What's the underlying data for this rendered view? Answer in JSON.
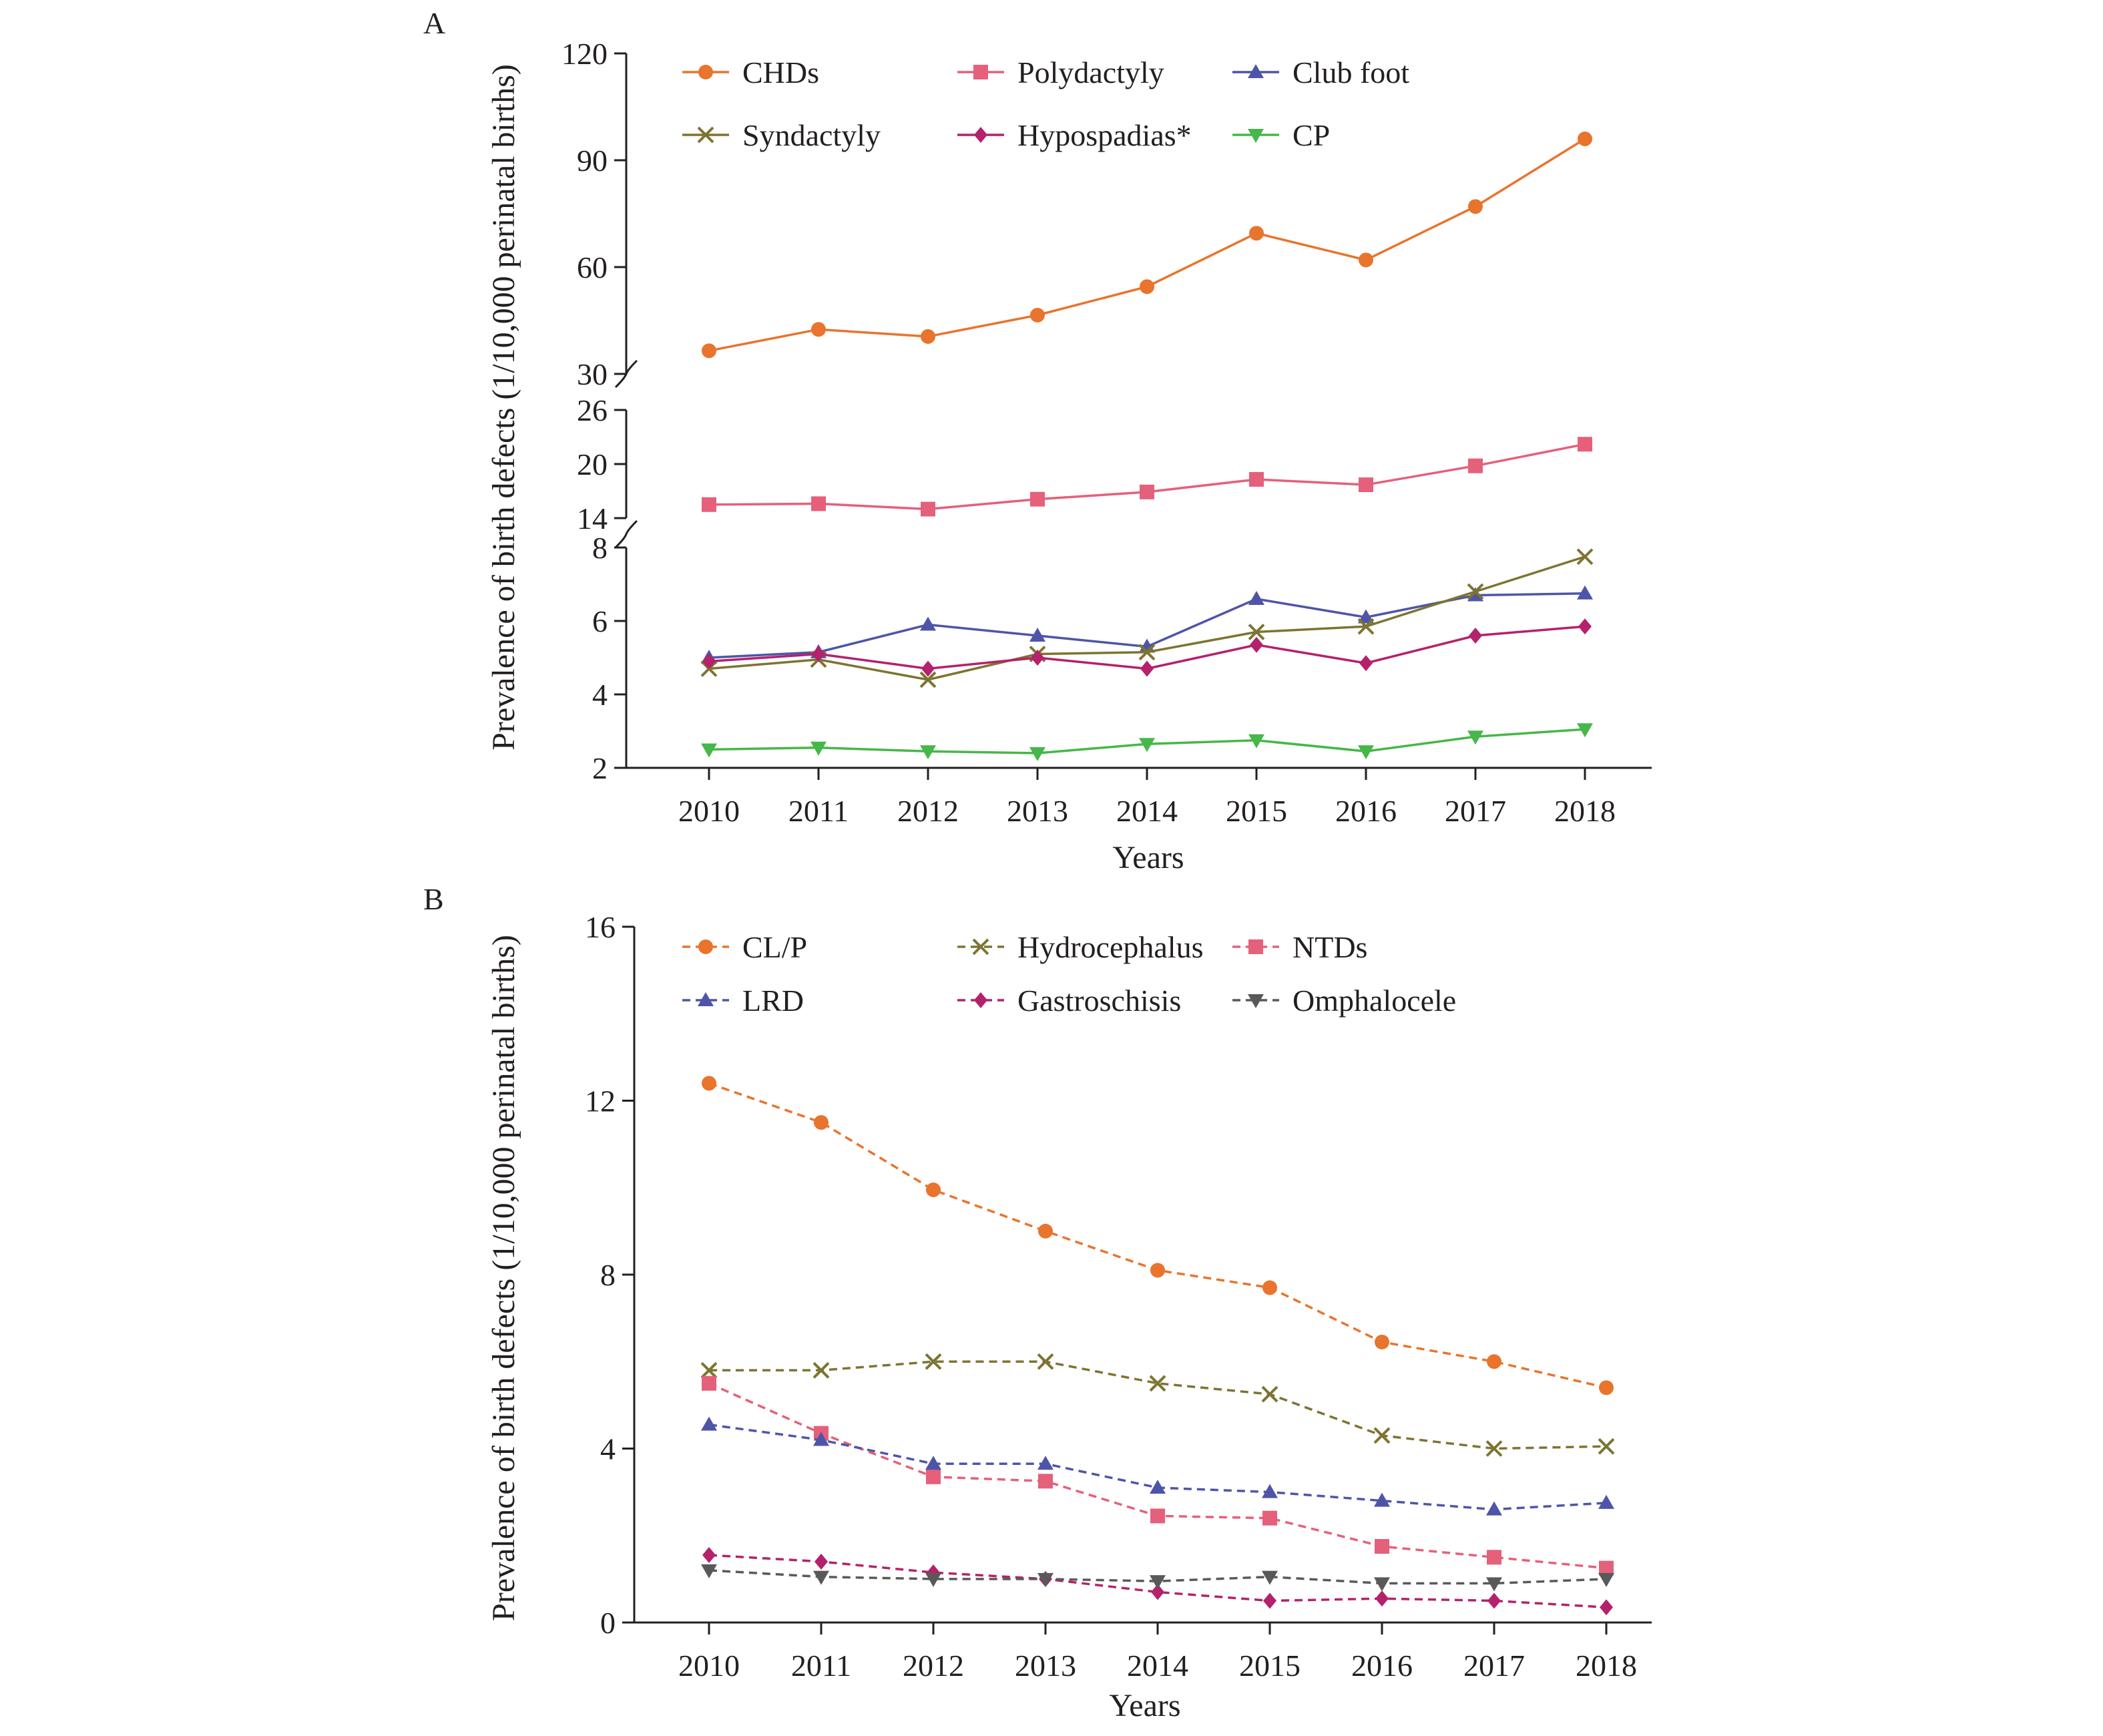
{
  "chart_data": [
    {
      "panel_label": "A",
      "type": "line",
      "xlabel": "Years",
      "ylabel": "Prevalence of birth defects (1/10,000 perinatal births)",
      "categories": [
        "2010",
        "2011",
        "2012",
        "2013",
        "2014",
        "2015",
        "2016",
        "2017",
        "2018"
      ],
      "broken_y_axis": true,
      "y_segments": [
        {
          "range": [
            2,
            8
          ],
          "ticks": [
            2,
            4,
            6,
            8
          ]
        },
        {
          "range": [
            14,
            26
          ],
          "ticks": [
            14,
            20,
            26
          ]
        },
        {
          "range": [
            30,
            120
          ],
          "ticks": [
            30,
            60,
            90,
            120
          ]
        }
      ],
      "legend_position": "top",
      "line_style": "solid",
      "grid": false,
      "series": [
        {
          "name": "CHDs",
          "color": "#e8742d",
          "marker": "circle",
          "values": [
            36.5,
            42.5,
            40.5,
            46.5,
            54.5,
            69.5,
            62,
            77,
            96
          ]
        },
        {
          "name": "Polydactyly",
          "color": "#e5607a",
          "marker": "square",
          "values": [
            15.5,
            15.6,
            15,
            16.1,
            16.9,
            18.3,
            17.7,
            19.8,
            22.2
          ]
        },
        {
          "name": "Club foot",
          "color": "#4e55a8",
          "marker": "triangle-up",
          "values": [
            5,
            5.15,
            5.9,
            5.6,
            5.3,
            6.6,
            6.1,
            6.7,
            6.75
          ]
        },
        {
          "name": "Syndactyly",
          "color": "#7d7431",
          "marker": "x",
          "values": [
            4.7,
            4.95,
            4.4,
            5.1,
            5.15,
            5.7,
            5.85,
            6.8,
            7.75
          ]
        },
        {
          "name": "Hypospadias*",
          "color": "#b5216b",
          "marker": "diamond",
          "values": [
            4.9,
            5.1,
            4.7,
            5,
            4.7,
            5.35,
            4.85,
            5.6,
            5.85
          ]
        },
        {
          "name": "CP",
          "color": "#46b749",
          "marker": "triangle-down",
          "values": [
            2.5,
            2.55,
            2.45,
            2.4,
            2.65,
            2.75,
            2.45,
            2.85,
            3.05
          ]
        }
      ]
    },
    {
      "panel_label": "B",
      "type": "line",
      "xlabel": "Years",
      "ylabel": "Prevalence of birth defects (1/10,000 perinatal births)",
      "categories": [
        "2010",
        "2011",
        "2012",
        "2013",
        "2014",
        "2015",
        "2016",
        "2017",
        "2018"
      ],
      "ylim": [
        0,
        16
      ],
      "yticks": [
        0,
        4,
        8,
        12,
        16
      ],
      "legend_position": "top",
      "line_style": "dashed",
      "grid": false,
      "series": [
        {
          "name": "CL/P",
          "color": "#e8742d",
          "marker": "circle",
          "values": [
            12.4,
            11.5,
            9.95,
            9,
            8.1,
            7.7,
            6.45,
            6,
            5.4
          ]
        },
        {
          "name": "Hydrocephalus",
          "color": "#7d7431",
          "marker": "x",
          "values": [
            5.8,
            5.8,
            6,
            6,
            5.5,
            5.25,
            4.3,
            4,
            4.05
          ]
        },
        {
          "name": "NTDs",
          "color": "#e5607a",
          "marker": "square",
          "values": [
            5.5,
            4.35,
            3.35,
            3.25,
            2.45,
            2.4,
            1.75,
            1.5,
            1.25
          ]
        },
        {
          "name": "LRD",
          "color": "#4e55a8",
          "marker": "triangle-up",
          "values": [
            4.55,
            4.2,
            3.65,
            3.65,
            3.1,
            3,
            2.8,
            2.6,
            2.75
          ]
        },
        {
          "name": "Gastroschisis",
          "color": "#b5216b",
          "marker": "diamond",
          "values": [
            1.55,
            1.4,
            1.15,
            1,
            0.7,
            0.5,
            0.55,
            0.5,
            0.35
          ]
        },
        {
          "name": "Omphalocele",
          "color": "#595959",
          "marker": "triangle-down",
          "values": [
            1.2,
            1.05,
            1,
            1,
            0.95,
            1.05,
            0.9,
            0.9,
            1
          ]
        }
      ]
    }
  ]
}
